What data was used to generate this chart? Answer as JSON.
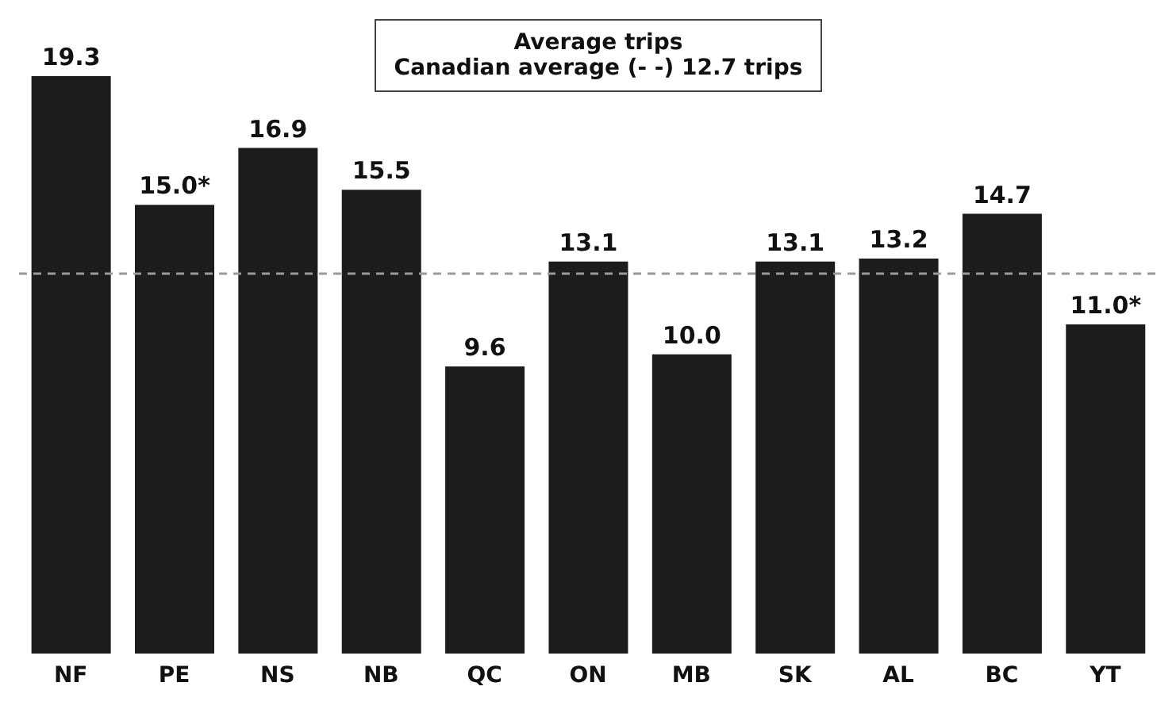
{
  "chart_data": {
    "type": "bar",
    "title": "Average trips",
    "subtitle": "Canadian average (- -) 12.7 trips",
    "categories": [
      "NF",
      "PE",
      "NS",
      "NB",
      "QC",
      "ON",
      "MB",
      "SK",
      "AL",
      "BC",
      "YT"
    ],
    "values": [
      19.3,
      15.0,
      16.9,
      15.5,
      9.6,
      13.1,
      10.0,
      13.1,
      13.2,
      14.7,
      11.0
    ],
    "value_labels": [
      "19.3",
      "15.0*",
      "16.9",
      "15.5",
      "9.6",
      "13.1",
      "10.0",
      "13.1",
      "13.2",
      "14.7",
      "11.0*"
    ],
    "color": "#1c1c1c",
    "ref_lines": [
      {
        "axis": "y",
        "value": 12.7,
        "color": "#9a9a9a",
        "line_style": "dashed"
      }
    ],
    "grid": false
  }
}
